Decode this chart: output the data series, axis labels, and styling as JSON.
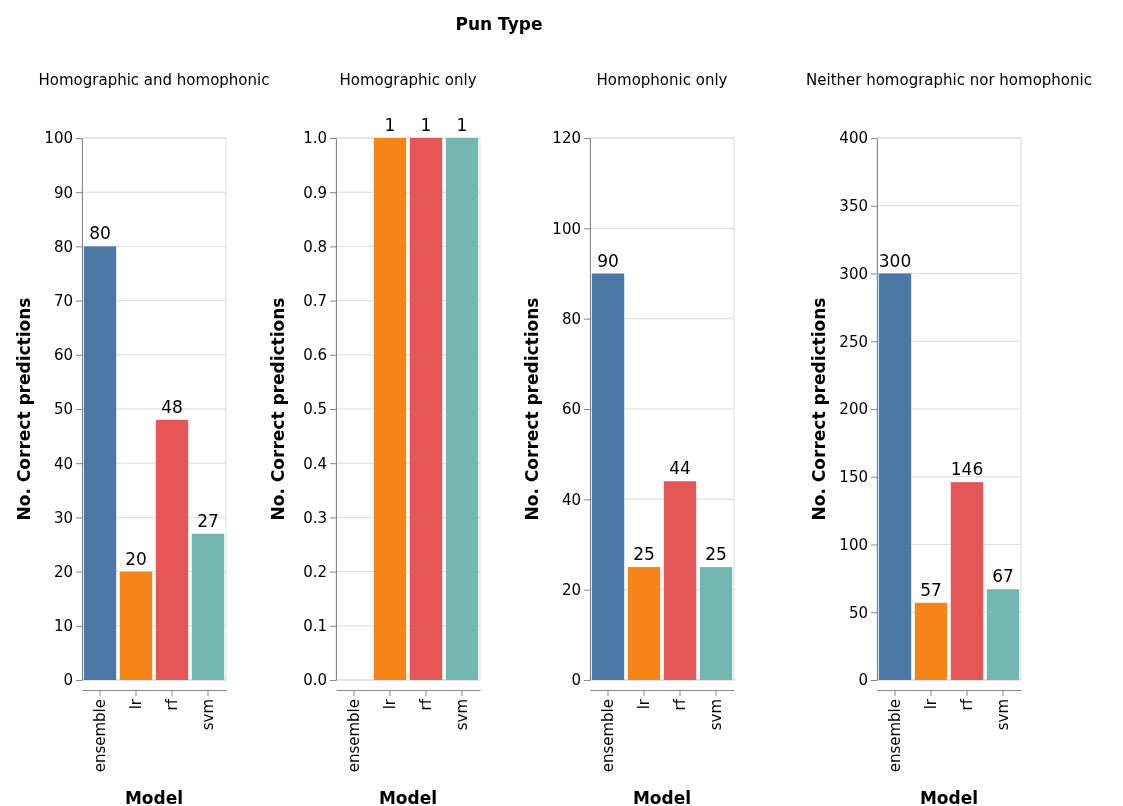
{
  "chart_data": [
    {
      "type": "bar",
      "title": "Homographic and homophonic",
      "annotations": [
        "Pun Type"
      ],
      "xlabel": "Model",
      "ylabel": "No. Correct predictions",
      "categories": [
        "ensemble",
        "lr",
        "rf",
        "svm"
      ],
      "values": [
        80,
        20,
        48,
        27
      ],
      "colors": [
        "#4c78a8",
        "#f58518",
        "#e45756",
        "#72b7b2"
      ],
      "ylim": [
        0,
        100
      ],
      "yticks": [
        0,
        10,
        20,
        30,
        40,
        50,
        60,
        70,
        80,
        90,
        100
      ],
      "grid": "y",
      "data_labels": true
    },
    {
      "type": "bar",
      "title": "Homographic only",
      "xlabel": "Model",
      "ylabel": "No. Correct predictions",
      "categories": [
        "ensemble",
        "lr",
        "rf",
        "svm"
      ],
      "values": [
        null,
        1,
        1,
        1
      ],
      "colors": [
        null,
        "#f58518",
        "#e45756",
        "#72b7b2"
      ],
      "ylim": [
        0,
        1
      ],
      "yticks": [
        {
          "value": 0,
          "label": "0.0"
        },
        {
          "value": 0.1,
          "label": "0.1"
        },
        {
          "value": 0.2,
          "label": "0.2"
        },
        {
          "value": 0.3,
          "label": "0.3"
        },
        {
          "value": 0.4,
          "label": "0.4"
        },
        {
          "value": 0.5,
          "label": "0.5"
        },
        {
          "value": 0.6,
          "label": "0.6"
        },
        {
          "value": 0.7,
          "label": "0.7"
        },
        {
          "value": 0.8,
          "label": "0.8"
        },
        {
          "value": 0.9,
          "label": "0.9"
        },
        {
          "value": 1,
          "label": "1.0"
        }
      ],
      "grid": "y",
      "data_labels": true
    },
    {
      "type": "bar",
      "title": "Homophonic only",
      "xlabel": "Model",
      "ylabel": "No. Correct predictions",
      "categories": [
        "ensemble",
        "lr",
        "rf",
        "svm"
      ],
      "values": [
        90,
        25,
        44,
        25
      ],
      "colors": [
        "#4c78a8",
        "#f58518",
        "#e45756",
        "#72b7b2"
      ],
      "ylim": [
        0,
        120
      ],
      "yticks": [
        0,
        20,
        40,
        60,
        80,
        100,
        120
      ],
      "grid": "y",
      "data_labels": true
    },
    {
      "type": "bar",
      "title": "Neither homographic nor homophonic",
      "xlabel": "Model",
      "ylabel": "No. Correct predictions",
      "categories": [
        "ensemble",
        "lr",
        "rf",
        "svm"
      ],
      "values": [
        300,
        57,
        146,
        67
      ],
      "colors": [
        "#4c78a8",
        "#f58518",
        "#e45756",
        "#72b7b2"
      ],
      "ylim": [
        0,
        400
      ],
      "yticks": [
        0,
        50,
        100,
        150,
        200,
        250,
        300,
        350,
        400
      ],
      "grid": "y",
      "data_labels": true
    }
  ]
}
